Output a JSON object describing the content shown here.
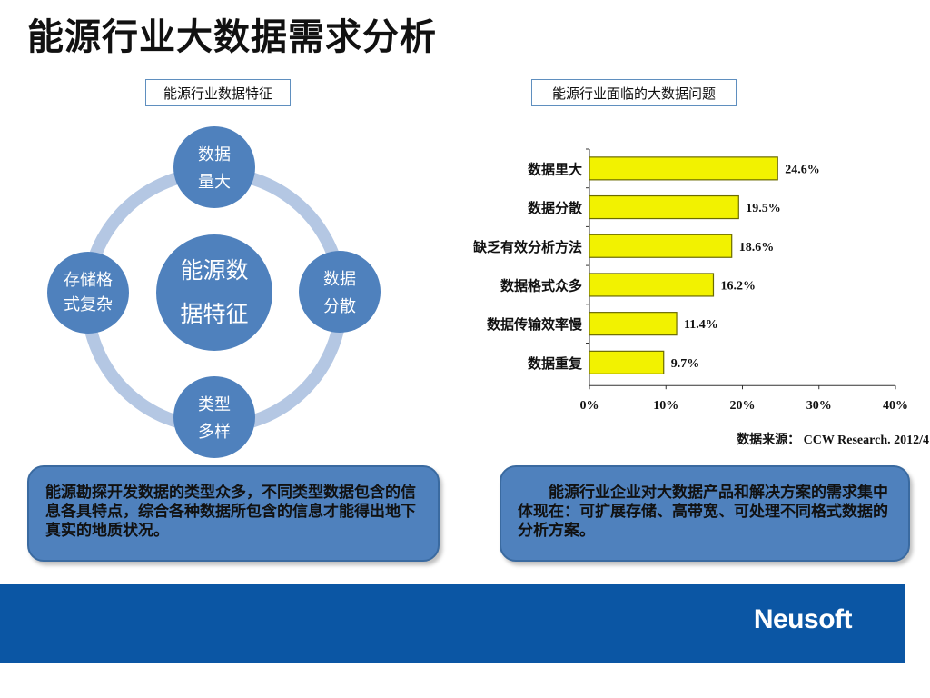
{
  "title": "能源行业大数据需求分析",
  "left_section_label": "能源行业数据特征",
  "right_section_label": "能源行业面临的大数据问题",
  "diagram": {
    "center": [
      "能源数",
      "据特征"
    ],
    "nodes": [
      {
        "id": "top",
        "lines": [
          "数据",
          "量大"
        ]
      },
      {
        "id": "right",
        "lines": [
          "数据",
          "分散"
        ]
      },
      {
        "id": "bottom",
        "lines": [
          "类型",
          "多样"
        ]
      },
      {
        "id": "left",
        "lines": [
          "存储格",
          "式复杂"
        ]
      }
    ],
    "colors": {
      "node": "#4f81bd",
      "ring": "#b4c7e3",
      "text": "#ffffff"
    }
  },
  "chart_data": {
    "type": "bar",
    "orientation": "horizontal",
    "categories": [
      "数据里大",
      "数据分散",
      "缺乏有效分析方法",
      "数据格式众多",
      "数据传输效率慢",
      "数据重复"
    ],
    "values": [
      24.6,
      19.5,
      18.6,
      16.2,
      11.4,
      9.7
    ],
    "value_labels": [
      "24.6%",
      "19.5%",
      "18.6%",
      "16.2%",
      "11.4%",
      "9.7%"
    ],
    "x_ticks": [
      "0%",
      "10%",
      "20%",
      "30%",
      "40%"
    ],
    "xlim": [
      0,
      40
    ],
    "bar_color": "#f2f200",
    "source": "数据来源： CCW Research. 2012/4"
  },
  "left_box_text": "能源勘探开发数据的类型众多，不同类型数据包含的信息各具特点，综合各种数据所包含的信息才能得出地下真实的地质状况。",
  "right_box_text": "能源行业企业对大数据产品和解决方案的需求集中体现在：可扩展存储、高带宽、可处理不同格式数据的分析方案。",
  "footer": {
    "logo": "Neusoft",
    "color": "#0b56a4"
  }
}
